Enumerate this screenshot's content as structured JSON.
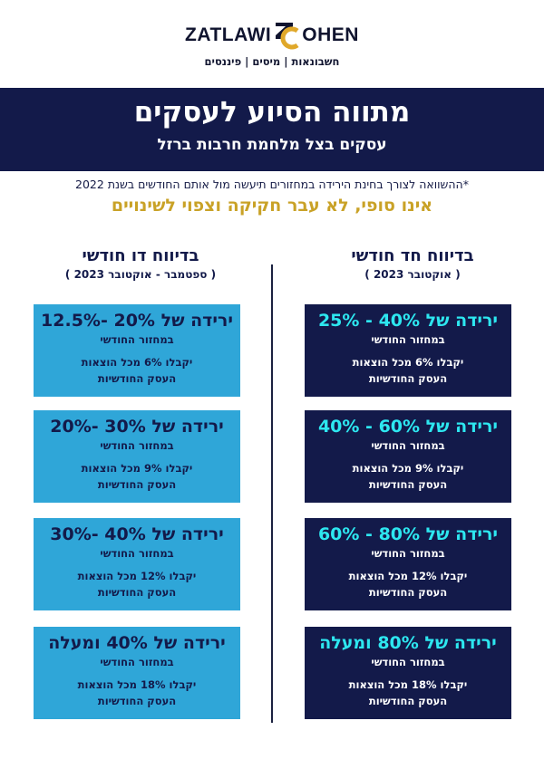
{
  "logo": {
    "word_left": "ZATLAWI",
    "word_right": "OHEN",
    "tagline": "חשבונאות | מיסים | פיננסים",
    "colors": {
      "gold": "#e0a82a",
      "navy": "#10142f"
    }
  },
  "banner": {
    "title": "מתווה הסיוע לעסקים",
    "subtitle": "עסקים בצל מלחמת חרבות ברזל"
  },
  "note": "*ההשוואה לצורך בחינת הירידה במחזורים תיעשה מול אותם החודשים בשנת 2022",
  "warning": "אינו סופי, לא עבר חקיקה וצפוי לשינויים",
  "columns": {
    "monthly": {
      "title": "בדיווח חד חודשי",
      "period": "( אוקטובר 2023 )",
      "cards": [
        {
          "headline": "ירידה של 40% - 25%",
          "line1": "במחזור החודשי",
          "line2": "יקבלו 6% מכל הוצאות",
          "line3": "העסק החודשיות"
        },
        {
          "headline": "ירידה של 60% - 40%",
          "line1": "במחזור החודשי",
          "line2": "יקבלו 9% מכל הוצאות",
          "line3": "העסק החודשיות"
        },
        {
          "headline": "ירידה של 80% - 60%",
          "line1": "במחזור החודשי",
          "line2": "יקבלו 12% מכל הוצאות",
          "line3": "העסק החודשיות"
        },
        {
          "headline": "ירידה של 80% ומעלה",
          "line1": "במחזור החודשי",
          "line2": "יקבלו 18% מכל הוצאות",
          "line3": "העסק החודשיות"
        }
      ]
    },
    "bimonthly": {
      "title": "בדיווח דו חודשי",
      "period": "( ספטמבר - אוקטובר 2023 )",
      "cards": [
        {
          "headline": "ירידה של 20% -12.5%",
          "line1": "במחזור החודשי",
          "line2": "יקבלו 6% מכל הוצאות",
          "line3": "העסק החודשיות"
        },
        {
          "headline": "ירידה של 30% -20%",
          "line1": "במחזור החודשי",
          "line2": "יקבלו 9% מכל הוצאות",
          "line3": "העסק החודשיות"
        },
        {
          "headline": "ירידה של 40% -30%",
          "line1": "במחזור החודשי",
          "line2": "יקבלו 12% מכל הוצאות",
          "line3": "העסק החודשיות"
        },
        {
          "headline": "ירידה של 40% ומעלה",
          "line1": "במחזור החודשי",
          "line2": "יקבלו 18% מכל הוצאות",
          "line3": "העסק החודשיות"
        }
      ]
    }
  }
}
